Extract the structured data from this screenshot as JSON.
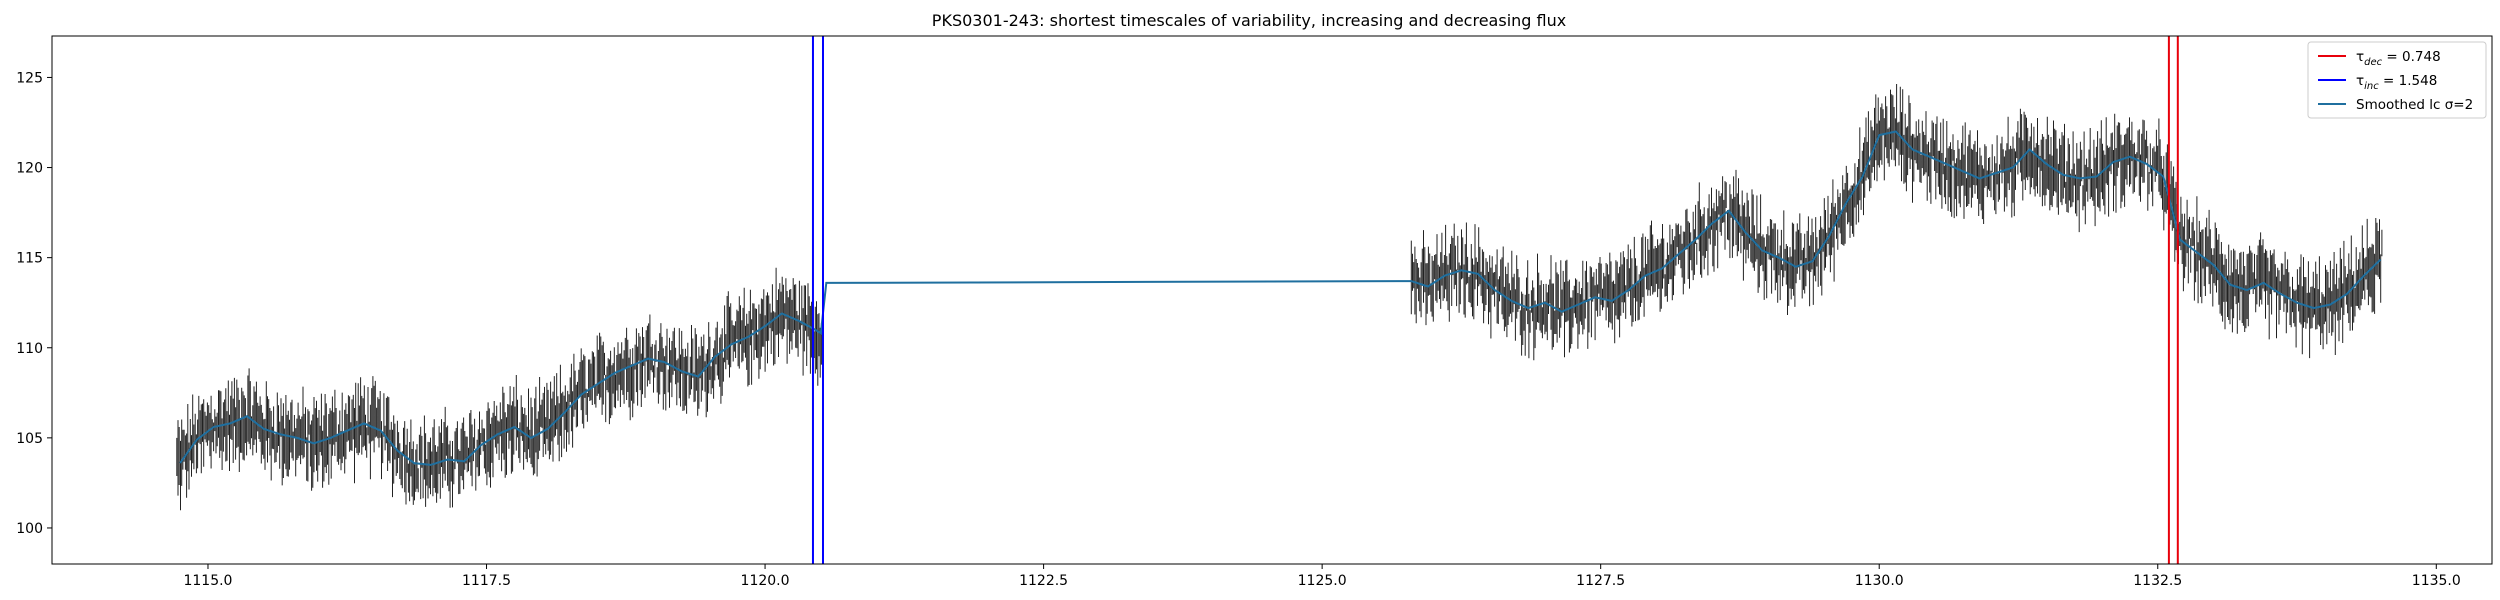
{
  "chart_data": {
    "type": "line",
    "title": "PKS0301-243: shortest timescales of variability, increasing and decreasing flux",
    "xlabel": "",
    "ylabel": "",
    "xlim": [
      1113.6,
      1135.5
    ],
    "ylim": [
      98.0,
      127.3
    ],
    "x_ticks": [
      1115.0,
      1117.5,
      1120.0,
      1122.5,
      1125.0,
      1127.5,
      1130.0,
      1132.5,
      1135.0
    ],
    "x_tick_labels": [
      "1115.0",
      "1117.5",
      "1120.0",
      "1122.5",
      "1125.0",
      "1127.5",
      "1130.0",
      "1132.5",
      "1135.0"
    ],
    "y_ticks": [
      100,
      105,
      110,
      115,
      120,
      125
    ],
    "y_tick_labels": [
      "100",
      "105",
      "110",
      "115",
      "120",
      "125"
    ],
    "grid": false,
    "legend_position": "top-right",
    "legend": [
      {
        "symbol": "τ",
        "sub": "dec",
        "text": " = 0.748",
        "color": "#e8000b"
      },
      {
        "symbol": "τ",
        "sub": "inc",
        "text": " = 1.548",
        "color": "#0000ff"
      },
      {
        "symbol": "Smoothed lc σ=2",
        "sub": "",
        "text": "",
        "color": "#1f6f9f"
      }
    ],
    "vertical_lines": [
      {
        "name": "tau-inc-start",
        "x": 1120.43,
        "color": "#0000ff"
      },
      {
        "name": "tau-inc-end",
        "x": 1120.52,
        "color": "#0000ff"
      },
      {
        "name": "tau-dec-start",
        "x": 1132.6,
        "color": "#e8000b"
      },
      {
        "name": "tau-dec-end",
        "x": 1132.68,
        "color": "#e8000b"
      }
    ],
    "series": [
      {
        "name": "Smoothed lc σ=2",
        "color": "#1f6f9f",
        "x": [
          1114.75,
          1114.9,
          1115.05,
          1115.2,
          1115.35,
          1115.5,
          1115.65,
          1115.8,
          1115.95,
          1116.1,
          1116.25,
          1116.4,
          1116.55,
          1116.7,
          1116.85,
          1117.0,
          1117.15,
          1117.3,
          1117.45,
          1117.6,
          1117.75,
          1117.9,
          1118.05,
          1118.2,
          1118.35,
          1118.5,
          1118.65,
          1118.8,
          1118.95,
          1119.1,
          1119.25,
          1119.4,
          1119.55,
          1119.7,
          1119.85,
          1120.0,
          1120.15,
          1120.3,
          1120.45,
          1120.5,
          1120.55,
          1125.8,
          1125.95,
          1126.1,
          1126.25,
          1126.4,
          1126.55,
          1126.7,
          1126.85,
          1127.0,
          1127.15,
          1127.3,
          1127.45,
          1127.6,
          1127.75,
          1127.9,
          1128.05,
          1128.2,
          1128.35,
          1128.5,
          1128.65,
          1128.8,
          1128.95,
          1129.1,
          1129.25,
          1129.4,
          1129.55,
          1129.7,
          1129.85,
          1130.0,
          1130.15,
          1130.3,
          1130.45,
          1130.6,
          1130.75,
          1130.9,
          1131.05,
          1131.2,
          1131.35,
          1131.5,
          1131.65,
          1131.8,
          1131.95,
          1132.1,
          1132.25,
          1132.4,
          1132.55,
          1132.7,
          1132.85,
          1133.0,
          1133.15,
          1133.3,
          1133.45,
          1133.6,
          1133.75,
          1133.9,
          1134.05,
          1134.2,
          1134.35,
          1134.5
        ],
        "y": [
          103.6,
          104.9,
          105.6,
          105.8,
          106.2,
          105.5,
          105.2,
          105.0,
          104.7,
          105.0,
          105.4,
          105.8,
          105.4,
          104.3,
          103.6,
          103.5,
          103.8,
          103.7,
          104.6,
          105.2,
          105.6,
          105.0,
          105.5,
          106.4,
          107.4,
          108.0,
          108.6,
          109.0,
          109.4,
          109.2,
          108.7,
          108.4,
          109.5,
          110.2,
          110.6,
          111.2,
          111.9,
          111.5,
          111.0,
          110.8,
          113.6,
          113.7,
          113.4,
          114.0,
          114.3,
          114.1,
          113.2,
          112.6,
          112.2,
          112.5,
          112.0,
          112.4,
          112.8,
          112.6,
          113.2,
          114.0,
          114.4,
          115.2,
          116.0,
          116.9,
          117.6,
          116.4,
          115.4,
          115.0,
          114.5,
          114.8,
          116.2,
          118.0,
          119.5,
          121.8,
          122.0,
          121.0,
          120.6,
          120.2,
          119.8,
          119.4,
          119.7,
          120.0,
          121.0,
          120.2,
          119.6,
          119.4,
          119.5,
          120.3,
          120.6,
          120.2,
          119.5,
          116.0,
          115.3,
          114.6,
          113.5,
          113.2,
          113.6,
          113.0,
          112.5,
          112.2,
          112.4,
          113.0,
          114.0,
          114.9
        ]
      }
    ]
  }
}
